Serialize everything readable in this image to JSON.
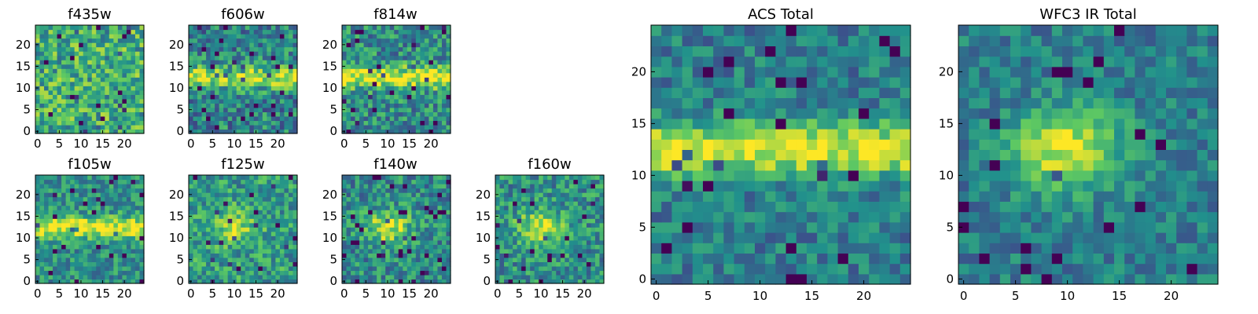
{
  "figure": {
    "background": "#ffffff",
    "colormap": "viridis",
    "colormap_stops": [
      "#440154",
      "#3b528b",
      "#21918c",
      "#5ec962",
      "#fde725"
    ]
  },
  "chart_data": [
    {
      "type": "heatmap",
      "title": "f435w",
      "grid_size": 25,
      "xlim": [
        0,
        24
      ],
      "ylim": [
        0,
        24
      ],
      "x_ticks": [
        "0",
        "5",
        "10",
        "15",
        "20"
      ],
      "y_ticks": [
        "0",
        "5",
        "10",
        "15",
        "20"
      ],
      "pattern": "noise",
      "seed": 11,
      "band_strength": 0.05,
      "noise": 0.55,
      "base": 0.62
    },
    {
      "type": "heatmap",
      "title": "f606w",
      "grid_size": 25,
      "xlim": [
        0,
        24
      ],
      "ylim": [
        0,
        24
      ],
      "x_ticks": [
        "0",
        "5",
        "10",
        "15",
        "20"
      ],
      "y_ticks": [
        "0",
        "5",
        "10",
        "15",
        "20"
      ],
      "pattern": "horizontal-band",
      "seed": 23,
      "band_strength": 0.45,
      "noise": 0.5,
      "base": 0.45
    },
    {
      "type": "heatmap",
      "title": "f814w",
      "grid_size": 25,
      "xlim": [
        0,
        24
      ],
      "ylim": [
        0,
        24
      ],
      "x_ticks": [
        "0",
        "5",
        "10",
        "15",
        "20"
      ],
      "y_ticks": [
        "0",
        "5",
        "10",
        "15",
        "20"
      ],
      "pattern": "horizontal-band",
      "seed": 37,
      "band_strength": 0.5,
      "noise": 0.5,
      "base": 0.48
    },
    {
      "type": "heatmap",
      "title": "f105w",
      "grid_size": 25,
      "xlim": [
        0,
        24
      ],
      "ylim": [
        0,
        24
      ],
      "x_ticks": [
        "0",
        "5",
        "10",
        "15",
        "20"
      ],
      "y_ticks": [
        "0",
        "5",
        "10",
        "15",
        "20"
      ],
      "pattern": "horizontal-band",
      "seed": 41,
      "band_strength": 0.45,
      "noise": 0.4,
      "base": 0.5
    },
    {
      "type": "heatmap",
      "title": "f125w",
      "grid_size": 25,
      "xlim": [
        0,
        24
      ],
      "ylim": [
        0,
        24
      ],
      "x_ticks": [
        "0",
        "5",
        "10",
        "15",
        "20"
      ],
      "y_ticks": [
        "0",
        "5",
        "10",
        "15",
        "20"
      ],
      "pattern": "blob",
      "seed": 53,
      "band_strength": 0.3,
      "noise": 0.45,
      "base": 0.55
    },
    {
      "type": "heatmap",
      "title": "f140w",
      "grid_size": 25,
      "xlim": [
        0,
        24
      ],
      "ylim": [
        0,
        24
      ],
      "x_ticks": [
        "0",
        "5",
        "10",
        "15",
        "20"
      ],
      "y_ticks": [
        "0",
        "5",
        "10",
        "15",
        "20"
      ],
      "pattern": "blob",
      "seed": 67,
      "band_strength": 0.45,
      "noise": 0.45,
      "base": 0.48
    },
    {
      "type": "heatmap",
      "title": "f160w",
      "grid_size": 25,
      "xlim": [
        0,
        24
      ],
      "ylim": [
        0,
        24
      ],
      "x_ticks": [
        "0",
        "5",
        "10",
        "15",
        "20"
      ],
      "y_ticks": [
        "0",
        "5",
        "10",
        "15",
        "20"
      ],
      "pattern": "blob",
      "seed": 79,
      "band_strength": 0.45,
      "noise": 0.45,
      "base": 0.5
    },
    {
      "type": "heatmap",
      "title": "ACS Total",
      "grid_size": 25,
      "xlim": [
        0,
        24
      ],
      "ylim": [
        0,
        24
      ],
      "x_ticks": [
        "0",
        "5",
        "10",
        "15",
        "20"
      ],
      "y_ticks": [
        "0",
        "5",
        "10",
        "15",
        "20"
      ],
      "pattern": "horizontal-band",
      "seed": 97,
      "band_strength": 0.55,
      "noise": 0.35,
      "base": 0.42
    },
    {
      "type": "heatmap",
      "title": "WFC3 IR Total",
      "grid_size": 25,
      "xlim": [
        0,
        24
      ],
      "ylim": [
        0,
        24
      ],
      "x_ticks": [
        "0",
        "5",
        "10",
        "15",
        "20"
      ],
      "y_ticks": [
        "0",
        "5",
        "10",
        "15",
        "20"
      ],
      "pattern": "blob",
      "seed": 113,
      "band_strength": 0.55,
      "noise": 0.32,
      "base": 0.42
    }
  ]
}
